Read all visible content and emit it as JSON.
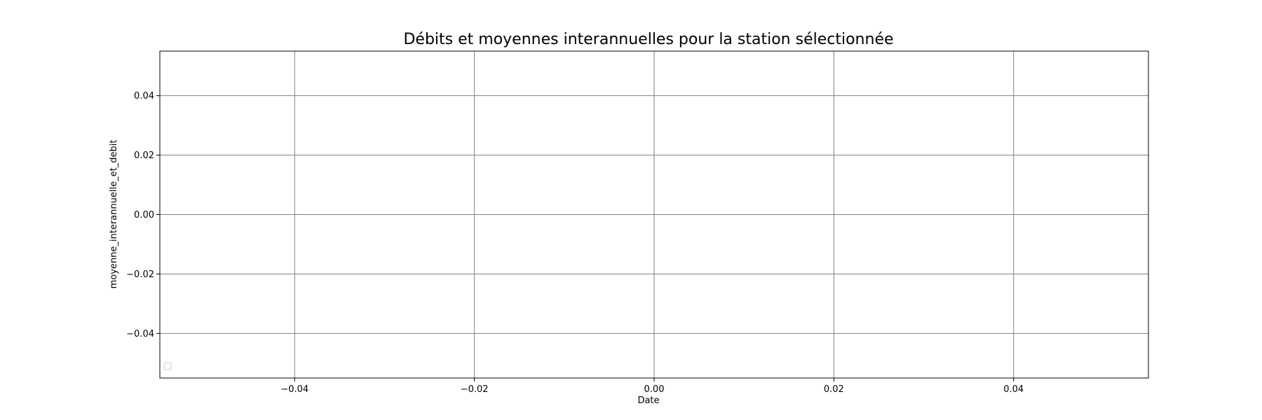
{
  "chart_data": {
    "type": "line",
    "title": "Débits et moyennes interannuelles pour la station sélectionnée",
    "xlabel": "Date",
    "ylabel": "moyenne_interannuelle_et_debit",
    "xlim": [
      -0.055,
      0.055
    ],
    "ylim": [
      -0.055,
      0.055
    ],
    "x_ticks": [
      -0.04,
      -0.02,
      0.0,
      0.02,
      0.04
    ],
    "x_tick_labels": [
      "−0.04",
      "−0.02",
      "0.00",
      "0.02",
      "0.04"
    ],
    "y_ticks": [
      0.04,
      0.02,
      0.0,
      -0.02,
      -0.04
    ],
    "y_tick_labels": [
      "0.04",
      "0.02",
      "0.00",
      "−0.02",
      "−0.04"
    ],
    "grid": true,
    "legend": {
      "placement": "lower-left",
      "entries": []
    },
    "series": [],
    "colors": {
      "grid": "#808080",
      "frame": "#000000",
      "background": "#ffffff"
    }
  }
}
